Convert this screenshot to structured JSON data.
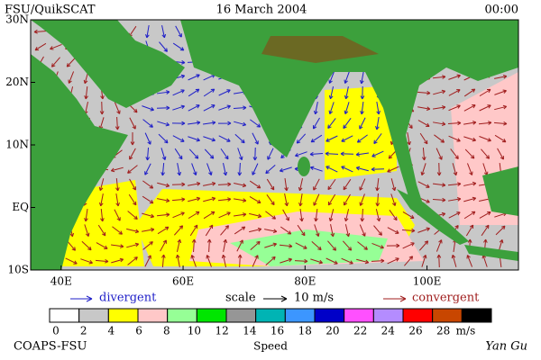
{
  "header": {
    "title": "FSU/QuikSCAT",
    "date": "16 March 2004",
    "time": "00:00"
  },
  "map": {
    "xlim": [
      35,
      115
    ],
    "ylim": [
      -10,
      30
    ],
    "lat_ticks": [
      {
        "value": 30,
        "label": "30N"
      },
      {
        "value": 20,
        "label": "20N"
      },
      {
        "value": 10,
        "label": "10N"
      },
      {
        "value": 0,
        "label": "EQ"
      },
      {
        "value": -10,
        "label": "10S"
      }
    ],
    "lon_ticks": [
      {
        "value": 40,
        "label": "40E"
      },
      {
        "value": 60,
        "label": "60E"
      },
      {
        "value": 80,
        "label": "80E"
      },
      {
        "value": 100,
        "label": "100E"
      }
    ]
  },
  "legend": {
    "divergent": "divergent",
    "scale": "scale",
    "scale_value": "10 m/s",
    "convergent": "convergent"
  },
  "colorbar": {
    "ticks": [
      0,
      2,
      4,
      6,
      8,
      10,
      12,
      14,
      16,
      18,
      20,
      22,
      24,
      26,
      28
    ],
    "unit": "m/s",
    "title": "Speed",
    "colors": [
      "#ffffff",
      "#c8c8c8",
      "#ffff00",
      "#ffc8c8",
      "#96ff96",
      "#00e600",
      "#969696",
      "#00b4b4",
      "#3c96ff",
      "#0000c8",
      "#ff50ff",
      "#b48cff",
      "#ff0000",
      "#c84600",
      "#000000"
    ]
  },
  "footer": {
    "credit": "COAPS-FSU",
    "author": "Yan Gu"
  }
}
